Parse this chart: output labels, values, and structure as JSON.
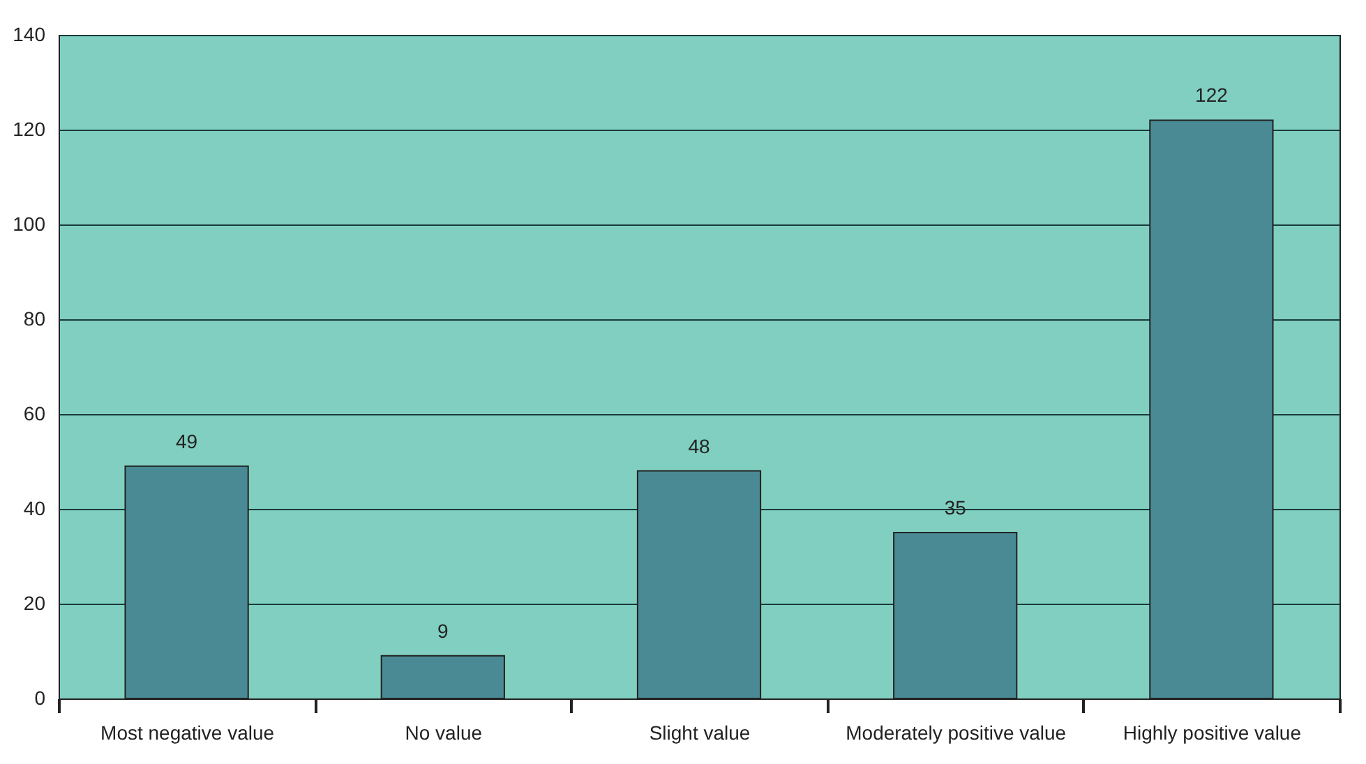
{
  "chart_data": {
    "type": "bar",
    "categories": [
      "Most negative value",
      "No value",
      "Slight value",
      "Moderately positive value",
      "Highly positive value"
    ],
    "values": [
      49,
      9,
      48,
      35,
      122
    ],
    "color": "#4a8a94",
    "ylim": [
      0,
      140
    ],
    "yticks": [
      0,
      20,
      40,
      60,
      80,
      100,
      120,
      140
    ],
    "grid": "y",
    "data_labels": true
  }
}
